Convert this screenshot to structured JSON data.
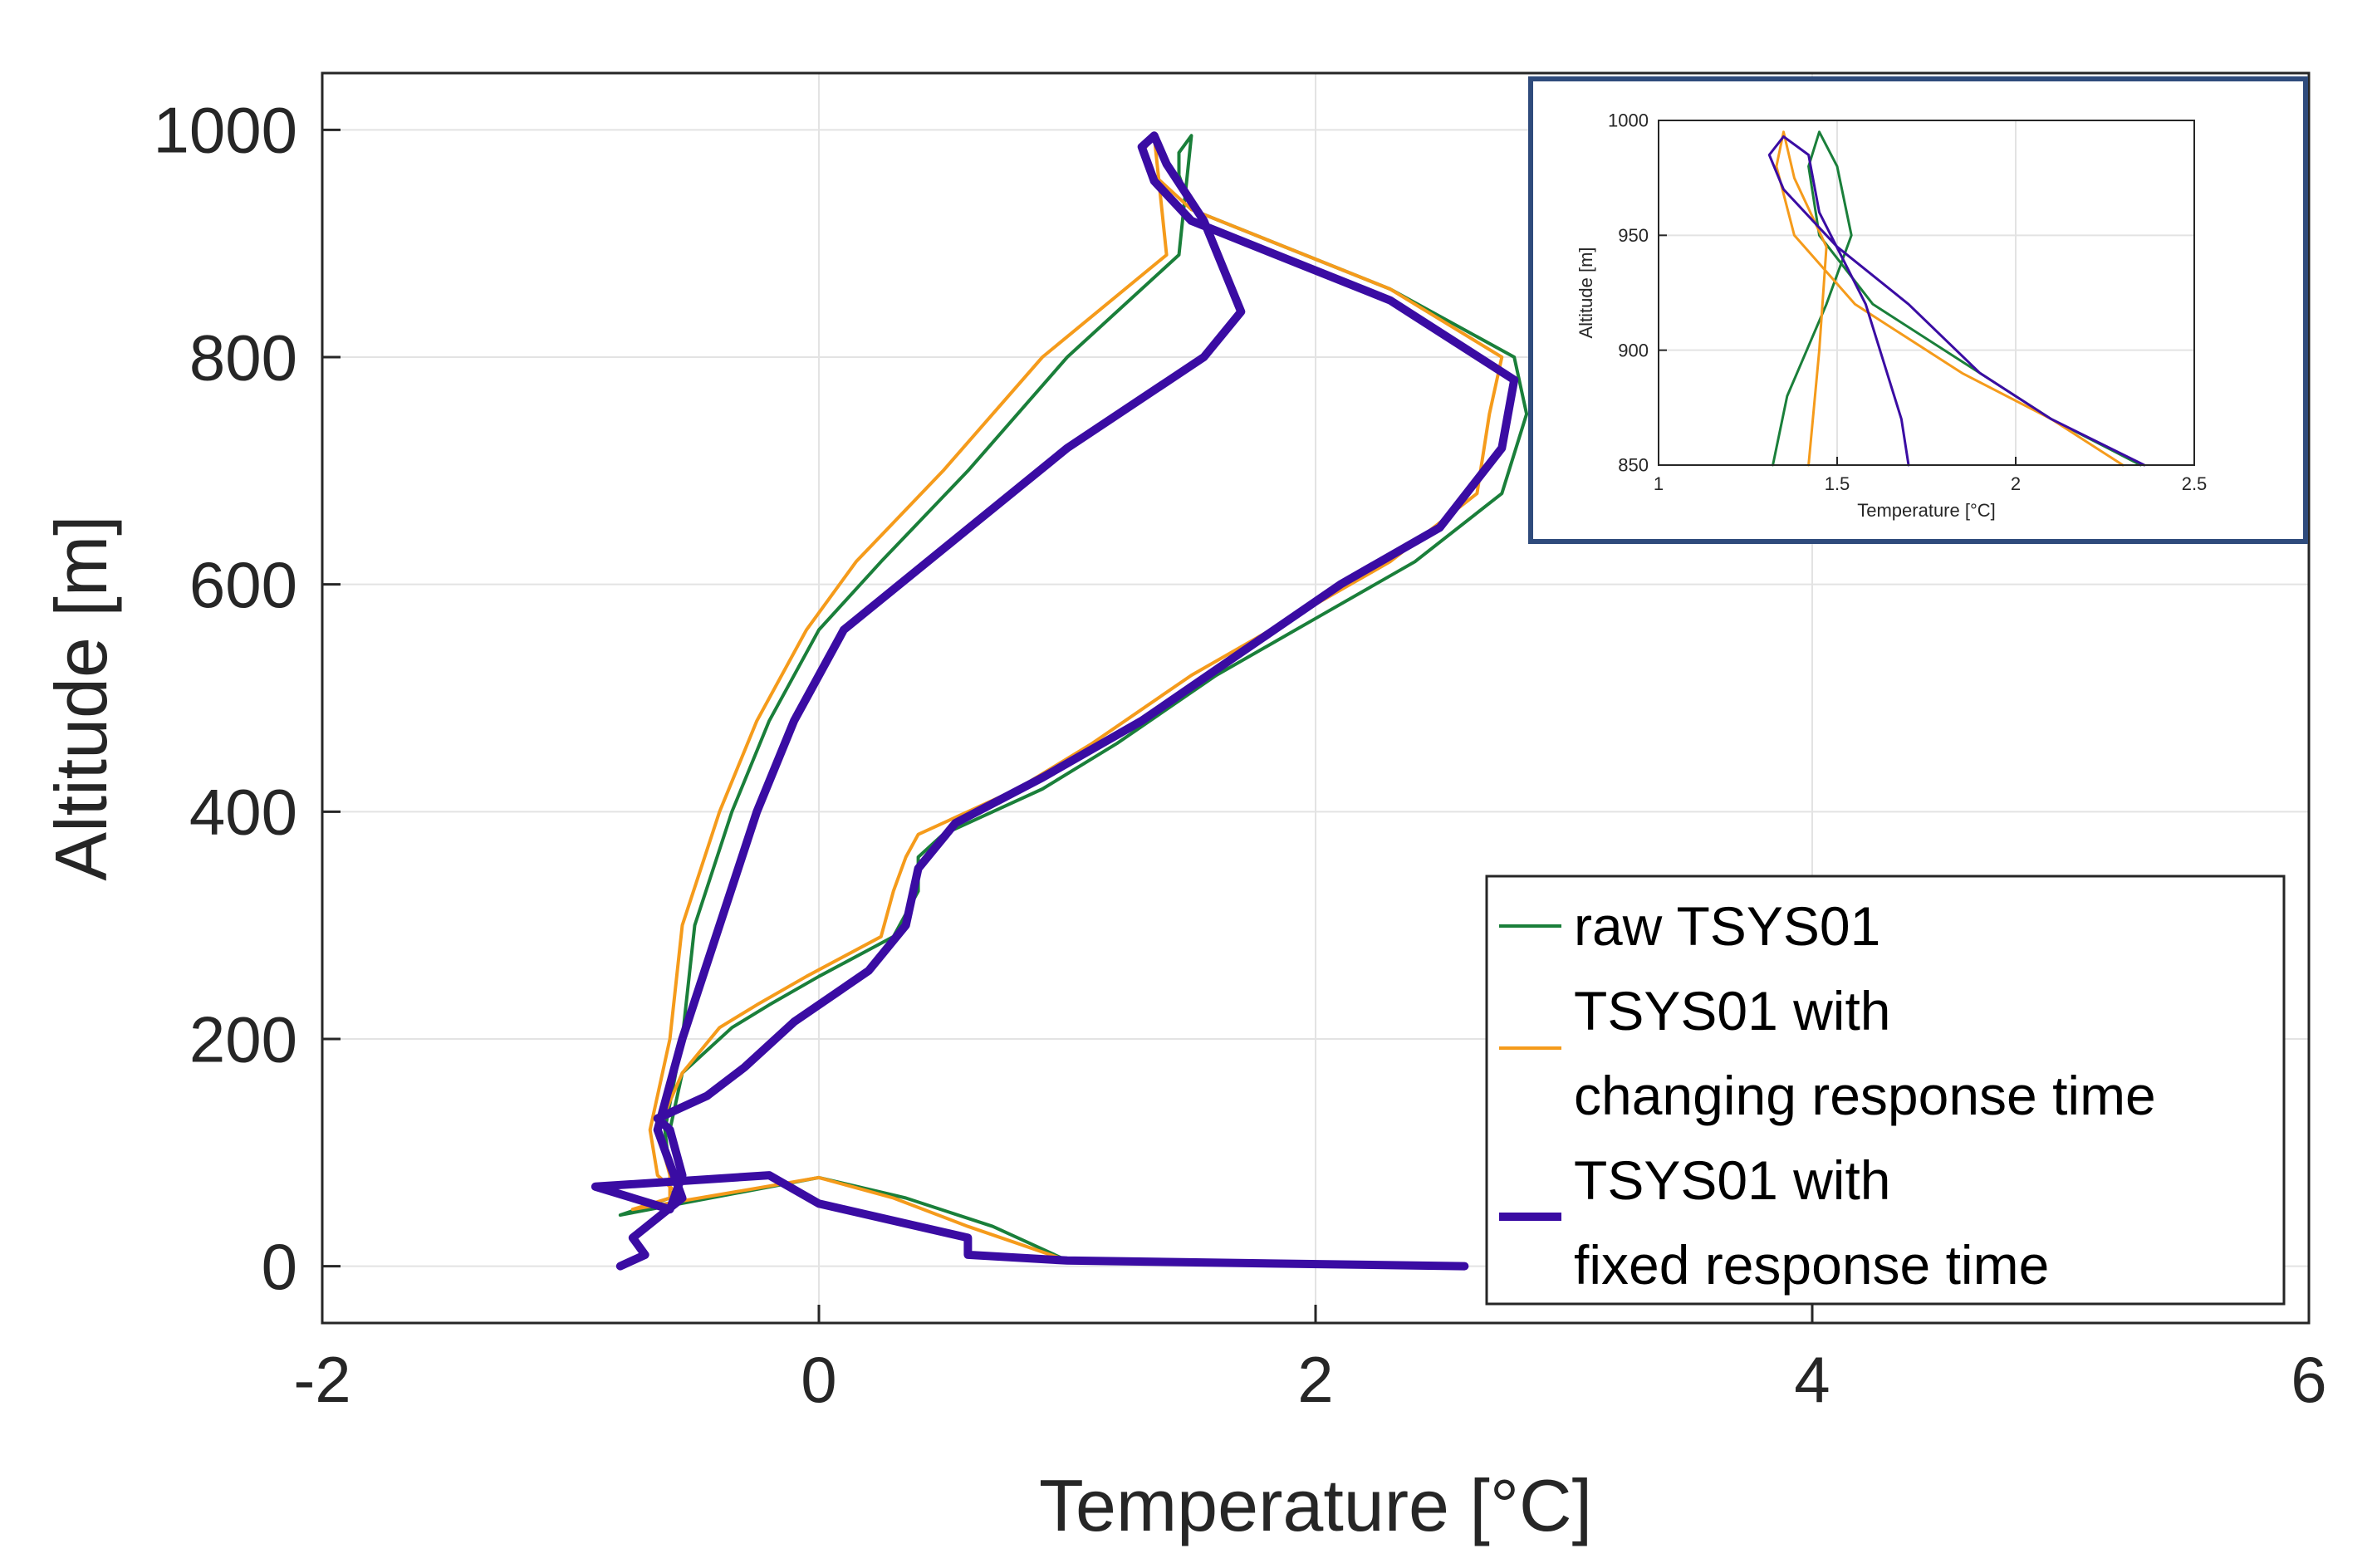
{
  "chart_data": [
    {
      "id": "main",
      "type": "line",
      "xlabel": "Temperature [°C]",
      "ylabel": "Altitude [m]",
      "xlim": [
        -2,
        6
      ],
      "ylim": [
        -50,
        1050
      ],
      "xticks": [
        -2,
        0,
        2,
        4,
        6
      ],
      "yticks": [
        0,
        200,
        400,
        600,
        800,
        1000
      ],
      "grid": true,
      "legend_position": "bottom-right",
      "series": [
        {
          "name": "raw TSYS01",
          "color": "#1a7f3a",
          "x": [
            2.6,
            1.0,
            0.85,
            0.7,
            0.35,
            0.0,
            -0.8,
            -0.6,
            -0.55,
            -0.6,
            -0.55,
            -0.35,
            -0.2,
            0.0,
            0.3,
            0.4,
            0.4,
            0.5,
            0.9,
            1.2,
            1.6,
            2.0,
            2.4,
            2.75,
            2.85,
            2.8,
            2.3,
            1.5,
            1.45,
            1.45,
            1.5,
            1.45,
            1.0,
            0.6,
            0.25,
            0.0,
            -0.2,
            -0.35,
            -0.5,
            -0.55,
            -0.62,
            -0.6,
            -0.55
          ],
          "y": [
            0,
            5,
            20,
            35,
            60,
            78,
            45,
            60,
            80,
            120,
            170,
            210,
            230,
            255,
            290,
            330,
            360,
            380,
            420,
            460,
            520,
            570,
            620,
            680,
            750,
            800,
            860,
            930,
            960,
            980,
            995,
            890,
            800,
            700,
            620,
            560,
            480,
            400,
            300,
            200,
            120,
            80,
            60
          ]
        },
        {
          "name": "TSYS01 with changing response time",
          "color": "#f59b1b",
          "x": [
            2.6,
            1.0,
            0.8,
            0.6,
            0.3,
            0.0,
            -0.75,
            -0.6,
            -0.6,
            -0.65,
            -0.55,
            -0.4,
            -0.25,
            -0.05,
            0.25,
            0.3,
            0.35,
            0.4,
            0.8,
            1.1,
            1.5,
            1.9,
            2.3,
            2.65,
            2.7,
            2.75,
            2.3,
            1.5,
            1.35,
            1.3,
            1.35,
            1.4,
            0.9,
            0.5,
            0.15,
            -0.05,
            -0.25,
            -0.4,
            -0.55,
            -0.6,
            -0.68,
            -0.65,
            -0.55
          ],
          "y": [
            0,
            5,
            20,
            35,
            60,
            78,
            50,
            60,
            80,
            120,
            170,
            210,
            230,
            255,
            290,
            330,
            360,
            380,
            420,
            460,
            520,
            570,
            620,
            680,
            750,
            800,
            860,
            930,
            960,
            980,
            995,
            890,
            800,
            700,
            620,
            560,
            480,
            400,
            300,
            200,
            120,
            80,
            60
          ]
        },
        {
          "name": "TSYS01 with fixed response time",
          "color": "#3a0ca3",
          "x": [
            2.6,
            1.0,
            0.6,
            0.6,
            0.0,
            -0.2,
            -0.9,
            -0.75,
            -0.6,
            -0.55,
            -0.6,
            -0.65,
            -0.45,
            -0.3,
            -0.1,
            0.2,
            0.35,
            0.4,
            0.55,
            0.9,
            1.3,
            1.7,
            2.1,
            2.5,
            2.75,
            2.8,
            2.3,
            1.5,
            1.35,
            1.3,
            1.35,
            1.4,
            1.55,
            1.7,
            1.55,
            1.0,
            0.55,
            0.1,
            -0.1,
            -0.25,
            -0.4,
            -0.55,
            -0.65,
            -0.55,
            -0.75,
            -0.7,
            -0.8
          ],
          "y": [
            0,
            5,
            10,
            25,
            55,
            80,
            70,
            60,
            50,
            80,
            120,
            130,
            150,
            175,
            215,
            260,
            300,
            350,
            390,
            430,
            480,
            540,
            600,
            650,
            720,
            780,
            850,
            920,
            955,
            985,
            995,
            970,
            920,
            840,
            800,
            720,
            640,
            560,
            480,
            400,
            300,
            200,
            120,
            60,
            25,
            10,
            0
          ]
        }
      ]
    },
    {
      "id": "inset",
      "type": "line",
      "xlabel": "Temperature [°C]",
      "ylabel": "Altitude [m]",
      "xlim": [
        1,
        2.5
      ],
      "ylim": [
        850,
        1000
      ],
      "xticks": [
        1,
        1.5,
        2,
        2.5
      ],
      "yticks": [
        850,
        900,
        950,
        1000
      ],
      "grid": true,
      "series": [
        {
          "name": "raw TSYS01",
          "color": "#1a7f3a",
          "x": [
            2.35,
            2.1,
            1.9,
            1.6,
            1.45,
            1.42,
            1.45,
            1.5,
            1.54,
            1.47,
            1.36,
            1.32
          ],
          "y": [
            850,
            870,
            890,
            920,
            950,
            980,
            995,
            980,
            950,
            920,
            880,
            850
          ]
        },
        {
          "name": "TSYS01 with changing response time",
          "color": "#f59b1b",
          "x": [
            2.3,
            2.1,
            1.85,
            1.55,
            1.38,
            1.33,
            1.35,
            1.38,
            1.47,
            1.45,
            1.42
          ],
          "y": [
            850,
            870,
            890,
            920,
            950,
            980,
            995,
            975,
            945,
            900,
            850
          ]
        },
        {
          "name": "TSYS01 with fixed response time",
          "color": "#3a0ca3",
          "x": [
            2.36,
            2.1,
            1.9,
            1.7,
            1.5,
            1.35,
            1.31,
            1.35,
            1.42,
            1.45,
            1.58,
            1.68,
            1.7
          ],
          "y": [
            850,
            870,
            890,
            920,
            945,
            970,
            985,
            993,
            985,
            960,
            920,
            870,
            850
          ]
        }
      ]
    }
  ]
}
